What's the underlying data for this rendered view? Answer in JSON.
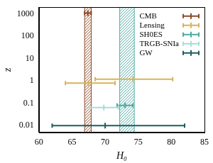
{
  "chart_data": {
    "type": "scatter",
    "xlabel": "H₀",
    "ylabel": "z",
    "xlim": [
      60,
      85
    ],
    "xticks": [
      60,
      65,
      70,
      75,
      80,
      85
    ],
    "ylim": [
      0.005,
      2000
    ],
    "yticks": [
      0.01,
      0.1,
      1,
      10,
      100,
      1000
    ],
    "log": "y",
    "grid": false,
    "legend": "upper right",
    "marker": "line",
    "series": [
      {
        "name": "CMB",
        "color": "#8c4a28",
        "x": [
          67.4
        ],
        "y": [
          1100
        ],
        "x_lower": [
          66.9
        ],
        "x_upper": [
          67.9
        ],
        "band": [
          66.9,
          67.9
        ]
      },
      {
        "name": "Lensing",
        "color": "#d8b45a",
        "x": [
          74.2,
          67.5
        ],
        "y": [
          1.2,
          0.8
        ],
        "x_lower": [
          68.5,
          64.0
        ],
        "x_upper": [
          80.2,
          71.5
        ]
      },
      {
        "name": "SH0ES",
        "color": "#4fa9a2",
        "x": [
          73.0
        ],
        "y": [
          0.08
        ],
        "x_lower": [
          71.8
        ],
        "x_upper": [
          74.2
        ],
        "band": [
          72.2,
          74.4
        ]
      },
      {
        "name": "TRGB-SNIa",
        "color": "#a9dcd7",
        "x": [
          69.8
        ],
        "y": [
          0.065
        ],
        "x_lower": [
          67.6
        ],
        "x_upper": [
          72.0
        ]
      },
      {
        "name": "GW",
        "color": "#1f5c5f",
        "x": [
          70.0
        ],
        "y": [
          0.01
        ],
        "x_lower": [
          62.0
        ],
        "x_upper": [
          82.0
        ]
      }
    ]
  }
}
